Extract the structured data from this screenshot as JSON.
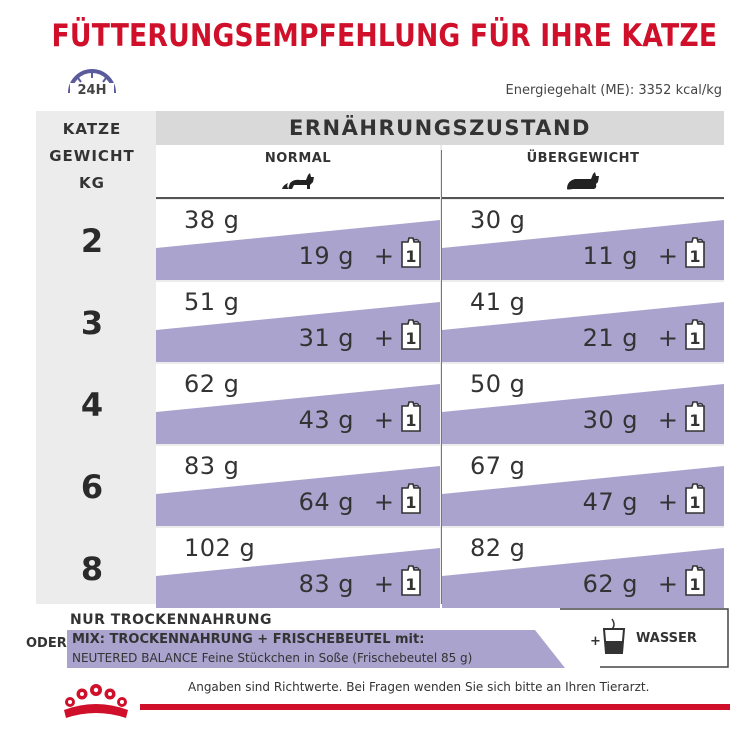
{
  "title": "FÜTTERUNGSEMPFEHLUNG FÜR IHRE KATZE",
  "energy": "Energiegehalt (ME): 3352 kcal/kg",
  "clock_label": "24H",
  "weight_header": [
    "KATZE",
    "GEWICHT",
    "KG"
  ],
  "condition_header": "ERNÄHRUNGSZUSTAND",
  "columns": [
    "NORMAL",
    "ÜBERGEWICHT"
  ],
  "rows": [
    {
      "weight": "2",
      "normal_dry": "38 g",
      "normal_mix": "19 g",
      "over_dry": "30 g",
      "over_mix": "11 g"
    },
    {
      "weight": "3",
      "normal_dry": "51 g",
      "normal_mix": "31 g",
      "over_dry": "41 g",
      "over_mix": "21 g"
    },
    {
      "weight": "4",
      "normal_dry": "62 g",
      "normal_mix": "43 g",
      "over_dry": "50 g",
      "over_mix": "30 g"
    },
    {
      "weight": "6",
      "normal_dry": "83 g",
      "normal_mix": "64 g",
      "over_dry": "67 g",
      "over_mix": "47 g"
    },
    {
      "weight": "8",
      "normal_dry": "102 g",
      "normal_mix": "83 g",
      "over_dry": "82 g",
      "over_mix": "62 g"
    }
  ],
  "plus": "+",
  "pouch_count": "1",
  "footer": {
    "dry_only": "NUR TROCKENNAHRUNG",
    "or": "ODER",
    "mix_line1": "MIX: TROCKENNAHRUNG + FRISCHEBEUTEL mit:",
    "mix_line2": "NEUTERED BALANCE Feine Stückchen in Soße (Frischebeutel 85 g)",
    "water": "WASSER",
    "water_plus": "+",
    "disclaimer": "Angaben sind Richtwerte. Bei Fragen wenden Sie sich bitte an Ihren Tierarzt."
  },
  "colors": {
    "brand_red": "#d0102b",
    "accent_purple": "#aaa3cd",
    "header_grey": "#d9d9d9"
  }
}
